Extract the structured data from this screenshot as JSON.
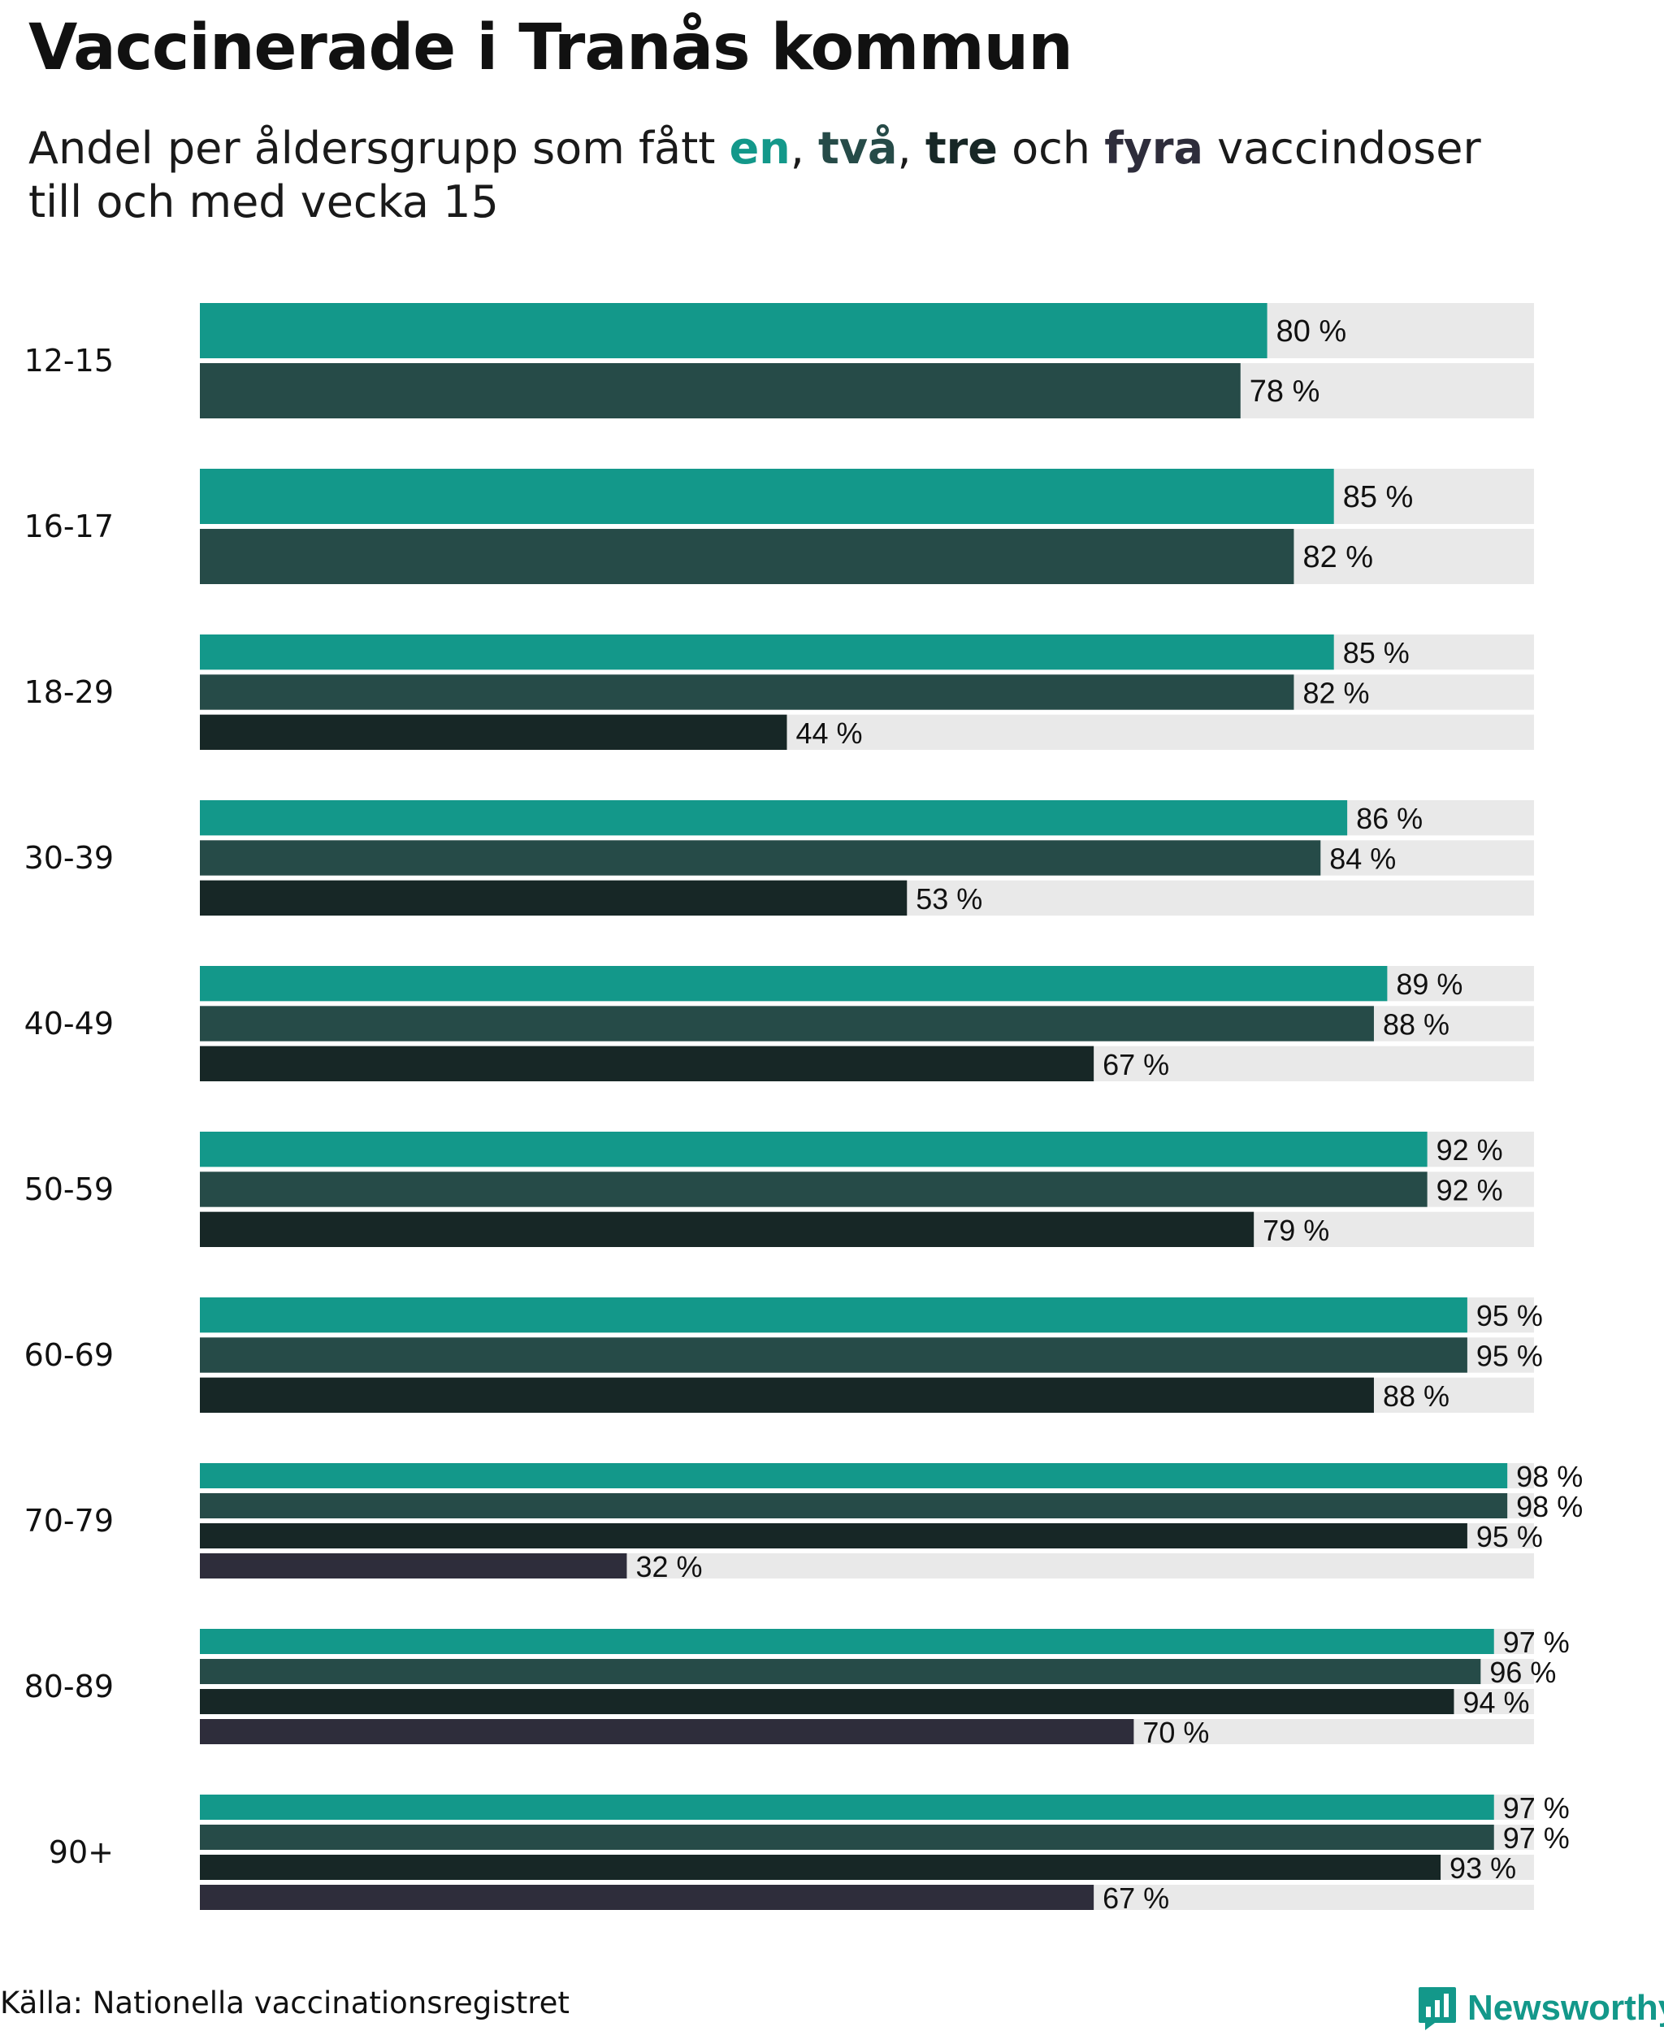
{
  "title": "Vaccinerade i Tranås kommun",
  "subtitle": {
    "prefix": "Andel per åldersgrupp som fått ",
    "dose1": "en",
    "sep1": ", ",
    "dose2": "två",
    "sep2": ", ",
    "dose3": "tre",
    "conj": " och ",
    "dose4": "fyra",
    "suffix": " vaccindoser",
    "line2": "till och med vecka 15"
  },
  "colors": {
    "dose1": "#13988a",
    "dose2": "#264b48",
    "dose3": "#172726",
    "dose4": "#2e2d3b",
    "track": "#e9e9e9"
  },
  "chart_data": {
    "type": "bar",
    "orientation": "horizontal",
    "xlim": [
      0,
      100
    ],
    "unit": "%",
    "grid": false,
    "groups": [
      {
        "label": "12-15",
        "values": [
          80,
          78
        ]
      },
      {
        "label": "16-17",
        "values": [
          85,
          82
        ]
      },
      {
        "label": "18-29",
        "values": [
          85,
          82,
          44
        ]
      },
      {
        "label": "30-39",
        "values": [
          86,
          84,
          53
        ]
      },
      {
        "label": "40-49",
        "values": [
          89,
          88,
          67
        ]
      },
      {
        "label": "50-59",
        "values": [
          92,
          92,
          79
        ]
      },
      {
        "label": "60-69",
        "values": [
          95,
          95,
          88
        ]
      },
      {
        "label": "70-79",
        "values": [
          98,
          98,
          95,
          32
        ]
      },
      {
        "label": "80-89",
        "values": [
          97,
          96,
          94,
          70
        ]
      },
      {
        "label": "90+",
        "values": [
          97,
          97,
          93,
          67
        ]
      }
    ]
  },
  "footer": {
    "source": "Källa: Nationella vaccinationsregistret",
    "brand": "Newsworthy",
    "brand_icon": "newsworthy-logo-icon"
  }
}
